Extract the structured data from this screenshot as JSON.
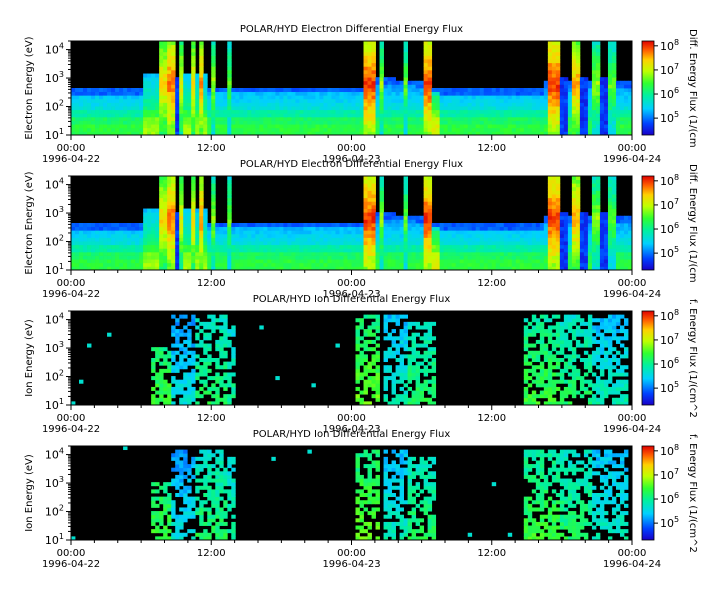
{
  "chart_data": [
    {
      "type": "heatmap",
      "title": "POLAR/HYD  Electron Differential Energy Flux",
      "ylabel": "Electron Energy (eV)",
      "colorbar_label": "Diff. Energy Flux (1/(cm",
      "x_ticks": [
        {
          "time": "00:00",
          "date": "1996-04-22"
        },
        {
          "time": "12:00",
          "date": ""
        },
        {
          "time": "00:00",
          "date": "1996-04-23"
        },
        {
          "time": "12:00",
          "date": ""
        },
        {
          "time": "00:00",
          "date": "1996-04-24"
        }
      ],
      "y_ticks": [
        "10^1",
        "10^2",
        "10^3",
        "10^4"
      ],
      "colorbar_ticks": [
        "10^5",
        "10^6",
        "10^7",
        "10^8"
      ],
      "xlim": [
        "1996-04-22 00:00",
        "1996-04-24 00:00"
      ],
      "ylim": [
        10,
        20000
      ],
      "yscale": "log",
      "colorscale": "rainbow (blue-cyan-green-yellow-red)"
    },
    {
      "type": "heatmap",
      "title": "POLAR/HYD  Electron Differential Energy Flux",
      "ylabel": "Electron Energy (eV)",
      "colorbar_label": "Diff. Energy Flux (1/(cm",
      "x_ticks": [
        {
          "time": "00:00",
          "date": "1996-04-22"
        },
        {
          "time": "12:00",
          "date": ""
        },
        {
          "time": "00:00",
          "date": "1996-04-23"
        },
        {
          "time": "12:00",
          "date": ""
        },
        {
          "time": "00:00",
          "date": "1996-04-24"
        }
      ],
      "y_ticks": [
        "10^1",
        "10^2",
        "10^3",
        "10^4"
      ],
      "colorbar_ticks": [
        "10^5",
        "10^6",
        "10^7",
        "10^8"
      ],
      "xlim": [
        "1996-04-22 00:00",
        "1996-04-24 00:00"
      ],
      "ylim": [
        10,
        20000
      ],
      "yscale": "log",
      "colorscale": "rainbow (blue-cyan-green-yellow-red)"
    },
    {
      "type": "heatmap",
      "title": "POLAR/HYD  Ion Differential Energy Flux",
      "ylabel": "Ion Energy (eV)",
      "colorbar_label": "f. Energy Flux (1/(cm^2",
      "x_ticks": [
        {
          "time": "00:00",
          "date": "1996-04-22"
        },
        {
          "time": "12:00",
          "date": ""
        },
        {
          "time": "00:00",
          "date": "1996-04-23"
        },
        {
          "time": "12:00",
          "date": ""
        },
        {
          "time": "00:00",
          "date": "1996-04-24"
        }
      ],
      "y_ticks": [
        "10^1",
        "10^2",
        "10^3",
        "10^4"
      ],
      "colorbar_ticks": [
        "10^5",
        "10^6",
        "10^7",
        "10^8"
      ],
      "xlim": [
        "1996-04-22 00:00",
        "1996-04-24 00:00"
      ],
      "ylim": [
        10,
        20000
      ],
      "yscale": "log",
      "colorscale": "rainbow (blue-cyan-green-yellow-red)"
    },
    {
      "type": "heatmap",
      "title": "POLAR/HYD  Ion Differential Energy Flux",
      "ylabel": "Ion Energy (eV)",
      "colorbar_label": "f. Energy Flux (1/(cm^2",
      "x_ticks": [
        {
          "time": "00:00",
          "date": "1996-04-22"
        },
        {
          "time": "12:00",
          "date": ""
        },
        {
          "time": "00:00",
          "date": "1996-04-23"
        },
        {
          "time": "12:00",
          "date": ""
        },
        {
          "time": "00:00",
          "date": "1996-04-24"
        }
      ],
      "y_ticks": [
        "10^1",
        "10^2",
        "10^3",
        "10^4"
      ],
      "colorbar_ticks": [
        "10^5",
        "10^6",
        "10^7",
        "10^8"
      ],
      "xlim": [
        "1996-04-22 00:00",
        "1996-04-24 00:00"
      ],
      "ylim": [
        10,
        20000
      ],
      "yscale": "log",
      "colorscale": "rainbow (blue-cyan-green-yellow-red)"
    }
  ]
}
